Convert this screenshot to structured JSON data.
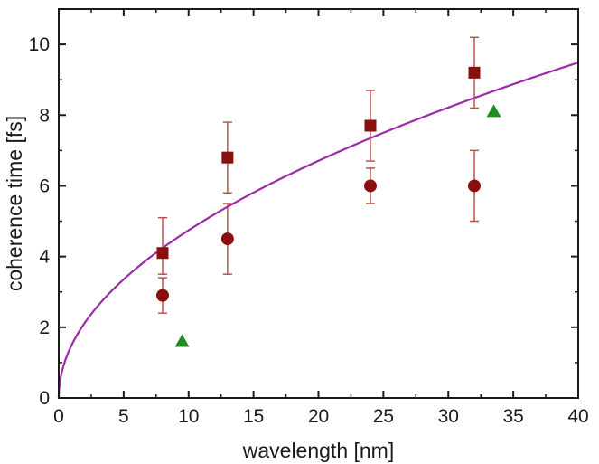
{
  "chart_data": {
    "type": "scatter",
    "xlabel": "wavelength [nm]",
    "ylabel": "coherence time [fs]",
    "xlim": [
      0,
      40
    ],
    "ylim": [
      0,
      11
    ],
    "x_ticks": [
      0,
      5,
      10,
      15,
      20,
      25,
      30,
      35,
      40
    ],
    "y_ticks": [
      0,
      2,
      4,
      6,
      8,
      10
    ],
    "grid": false,
    "legend": "none",
    "series": [
      {
        "marker": "square",
        "color": "#8b0e0e",
        "points": [
          {
            "x": 8,
            "y": 4.1,
            "err_low": 3.5,
            "err_high": 5.1
          },
          {
            "x": 13,
            "y": 6.8,
            "err_low": 5.8,
            "err_high": 7.8
          },
          {
            "x": 24,
            "y": 7.7,
            "err_low": 6.7,
            "err_high": 8.7
          },
          {
            "x": 32,
            "y": 9.2,
            "err_low": 8.2,
            "err_high": 10.2
          }
        ]
      },
      {
        "marker": "circle",
        "color": "#8b0e0e",
        "points": [
          {
            "x": 8,
            "y": 2.9,
            "err_low": 2.4,
            "err_high": 3.4
          },
          {
            "x": 13,
            "y": 4.5,
            "err_low": 3.5,
            "err_high": 5.5
          },
          {
            "x": 24,
            "y": 6.0,
            "err_low": 5.5,
            "err_high": 6.5
          },
          {
            "x": 32,
            "y": 6.0,
            "err_low": 5.0,
            "err_high": 7.0
          }
        ]
      },
      {
        "marker": "triangle",
        "color": "#1e8c1e",
        "points": [
          {
            "x": 9.5,
            "y": 1.6
          },
          {
            "x": 33.5,
            "y": 8.1
          }
        ]
      }
    ],
    "fit_curve": {
      "function": "y = a * x^b",
      "a": 1.5,
      "b": 0.5,
      "color": "#9c2aa6"
    }
  }
}
